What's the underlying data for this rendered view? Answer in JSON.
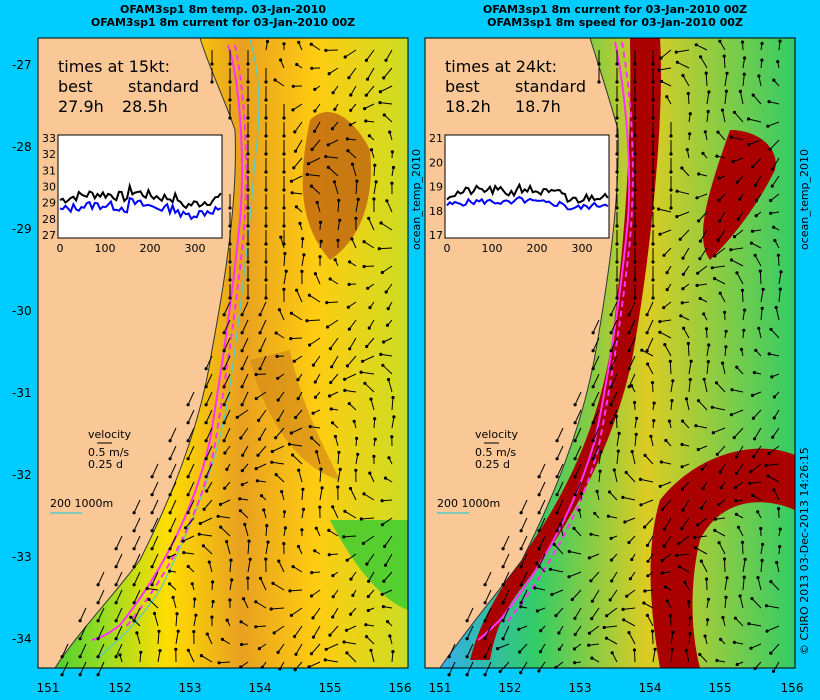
{
  "left_panel": {
    "title_line1": "OFAM3sp1 8m temp. 03-Jan-2010",
    "title_line2": "OFAM3sp1 8m current for 03-Jan-2010 00Z",
    "times_heading": "times at 15kt:",
    "col_best": "best",
    "col_standard": "standard",
    "best_time": "27.9h",
    "standard_time": "28.5h",
    "inset_y_ticks": [
      "33",
      "32",
      "31",
      "30",
      "29",
      "28",
      "27"
    ],
    "inset_x_ticks": [
      "0",
      "100",
      "200",
      "300"
    ],
    "side_label": "ocean_temp_2010"
  },
  "right_panel": {
    "title_line1": "OFAM3sp1 8m current for 03-Jan-2010 00Z",
    "title_line2": "OFAM3sp1 8m speed for 03-Jan-2010 00Z",
    "times_heading": "times at 24kt:",
    "col_best": "best",
    "col_standard": "standard",
    "best_time": "18.2h",
    "standard_time": "18.7h",
    "inset_y_ticks": [
      "21",
      "20",
      "19",
      "18",
      "17"
    ],
    "inset_x_ticks": [
      "0",
      "100",
      "200",
      "300"
    ],
    "side_label": "ocean_temp_2010"
  },
  "legend": {
    "velocity_label": "velocity",
    "speed_label": "0.5 m/s",
    "duration_label": "0.25 d",
    "isobath_label": "200  1000m"
  },
  "lat_ticks": [
    "-27",
    "-28",
    "-29",
    "-30",
    "-31",
    "-32",
    "-33",
    "-34"
  ],
  "lon_ticks": [
    "151",
    "152",
    "153",
    "154",
    "155",
    "156"
  ],
  "credit": "© CSIRO 2013   03-Dec-2013 14:26:15",
  "colors": {
    "background": "#00ccff",
    "land": "#f9c896",
    "route": "#ff33ff",
    "best_series": "#000000",
    "standard_series": "#0000ff"
  }
}
